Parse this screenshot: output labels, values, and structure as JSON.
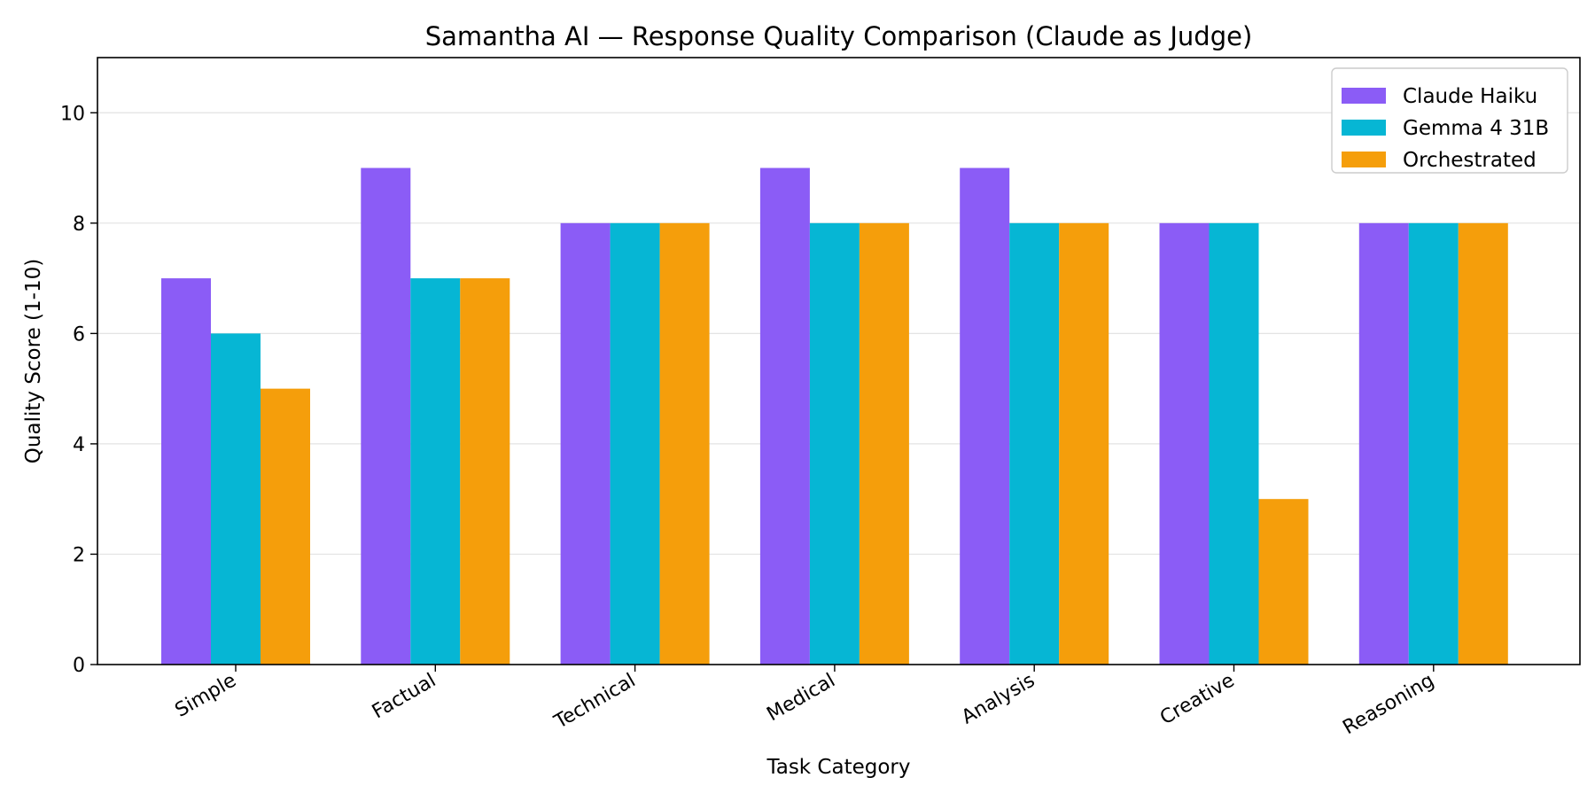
{
  "chart_data": {
    "type": "bar",
    "title": "Samantha AI — Response Quality Comparison (Claude as Judge)",
    "xlabel": "Task Category",
    "ylabel": "Quality Score (1-10)",
    "ylim": [
      0,
      11
    ],
    "yticks": [
      0,
      2,
      4,
      6,
      8,
      10
    ],
    "grid": "horizontal",
    "legend_position": "top-right",
    "categories": [
      "Simple",
      "Factual",
      "Technical",
      "Medical",
      "Analysis",
      "Creative",
      "Reasoning"
    ],
    "series": [
      {
        "name": "Claude Haiku",
        "color": "#8b5cf6",
        "values": [
          7,
          9,
          8,
          9,
          9,
          8,
          8
        ]
      },
      {
        "name": "Gemma 4 31B",
        "color": "#06b6d4",
        "values": [
          6,
          7,
          8,
          8,
          8,
          8,
          8
        ]
      },
      {
        "name": "Orchestrated",
        "color": "#f59e0b",
        "values": [
          5,
          7,
          8,
          8,
          8,
          3,
          8
        ]
      }
    ]
  }
}
